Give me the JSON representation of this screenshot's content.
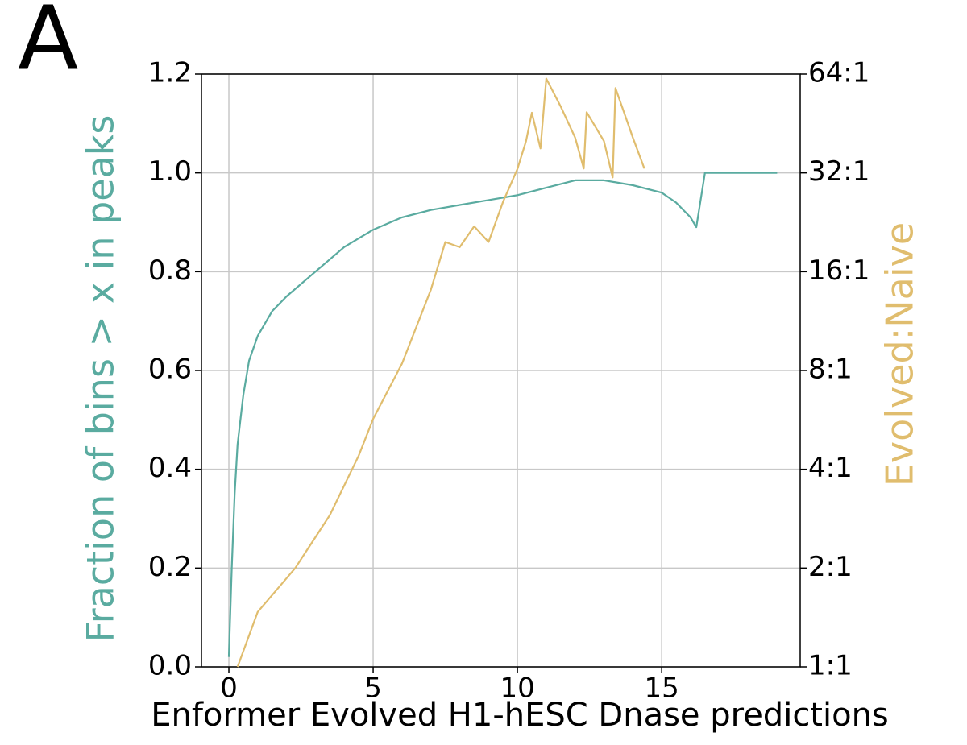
{
  "chart_data": {
    "type": "line",
    "panel_label": "A",
    "xlabel": "Enformer Evolved H1-hESC Dnase predictions",
    "ylabel": "Fraction of bins > x in peaks",
    "y2label": "Evolved:Naive",
    "ylabel_color": "#5aaba0",
    "y2label_color": "#e0bd6e",
    "xlim": [
      -0.95,
      19.8
    ],
    "xticks": [
      0,
      5,
      10,
      15
    ],
    "ylim": [
      0,
      1.2
    ],
    "yticks": [
      {
        "value": 0,
        "label": "0.0"
      },
      0.2,
      0.4,
      0.6,
      0.8,
      {
        "value": 1,
        "label": "1.0"
      },
      1.2
    ],
    "y2lim": [
      1,
      64
    ],
    "y2scale": "log",
    "y2ticks": [
      {
        "value": 1,
        "label": "1:1"
      },
      {
        "value": 2,
        "label": "2:1"
      },
      {
        "value": 4,
        "label": "4:1"
      },
      {
        "value": 8,
        "label": "8:1"
      },
      {
        "value": 16,
        "label": "16:1"
      },
      {
        "value": 32,
        "label": "32:1"
      },
      {
        "value": 64,
        "label": "64:1"
      }
    ],
    "grid": true,
    "series": [
      {
        "color": "#5aaba0",
        "x": [
          0,
          0.1,
          0.2,
          0.3,
          0.5,
          0.7,
          1,
          1.5,
          2,
          3,
          4,
          5,
          6,
          7,
          8,
          9,
          10,
          11,
          12,
          13,
          14,
          15,
          15.5,
          16,
          16.2,
          16.5,
          19
        ],
        "values": [
          0.02,
          0.2,
          0.35,
          0.45,
          0.55,
          0.62,
          0.67,
          0.72,
          0.75,
          0.8,
          0.85,
          0.885,
          0.91,
          0.925,
          0.935,
          0.945,
          0.955,
          0.97,
          0.985,
          0.985,
          0.975,
          0.96,
          0.94,
          0.91,
          0.89,
          1.0,
          1.0
        ]
      },
      {
        "color": "#e0bd6e",
        "axis": "y2",
        "x": [
          0.3,
          1,
          2.3,
          3.5,
          4.5,
          5,
          6,
          7,
          7.5,
          8,
          8.5,
          9,
          9.5,
          10,
          10.3,
          10.5,
          10.8,
          11,
          11.5,
          12,
          12.3,
          12.4,
          13,
          13.3,
          13.4,
          14,
          14.4
        ],
        "values": [
          1.0,
          1.47,
          2.0,
          2.9,
          4.4,
          5.7,
          8.4,
          14.1,
          19.7,
          19,
          22,
          19.7,
          26.1,
          32.9,
          40,
          48.8,
          38,
          62,
          51,
          41,
          33,
          49,
          40,
          31,
          58,
          41,
          33
        ]
      }
    ]
  }
}
